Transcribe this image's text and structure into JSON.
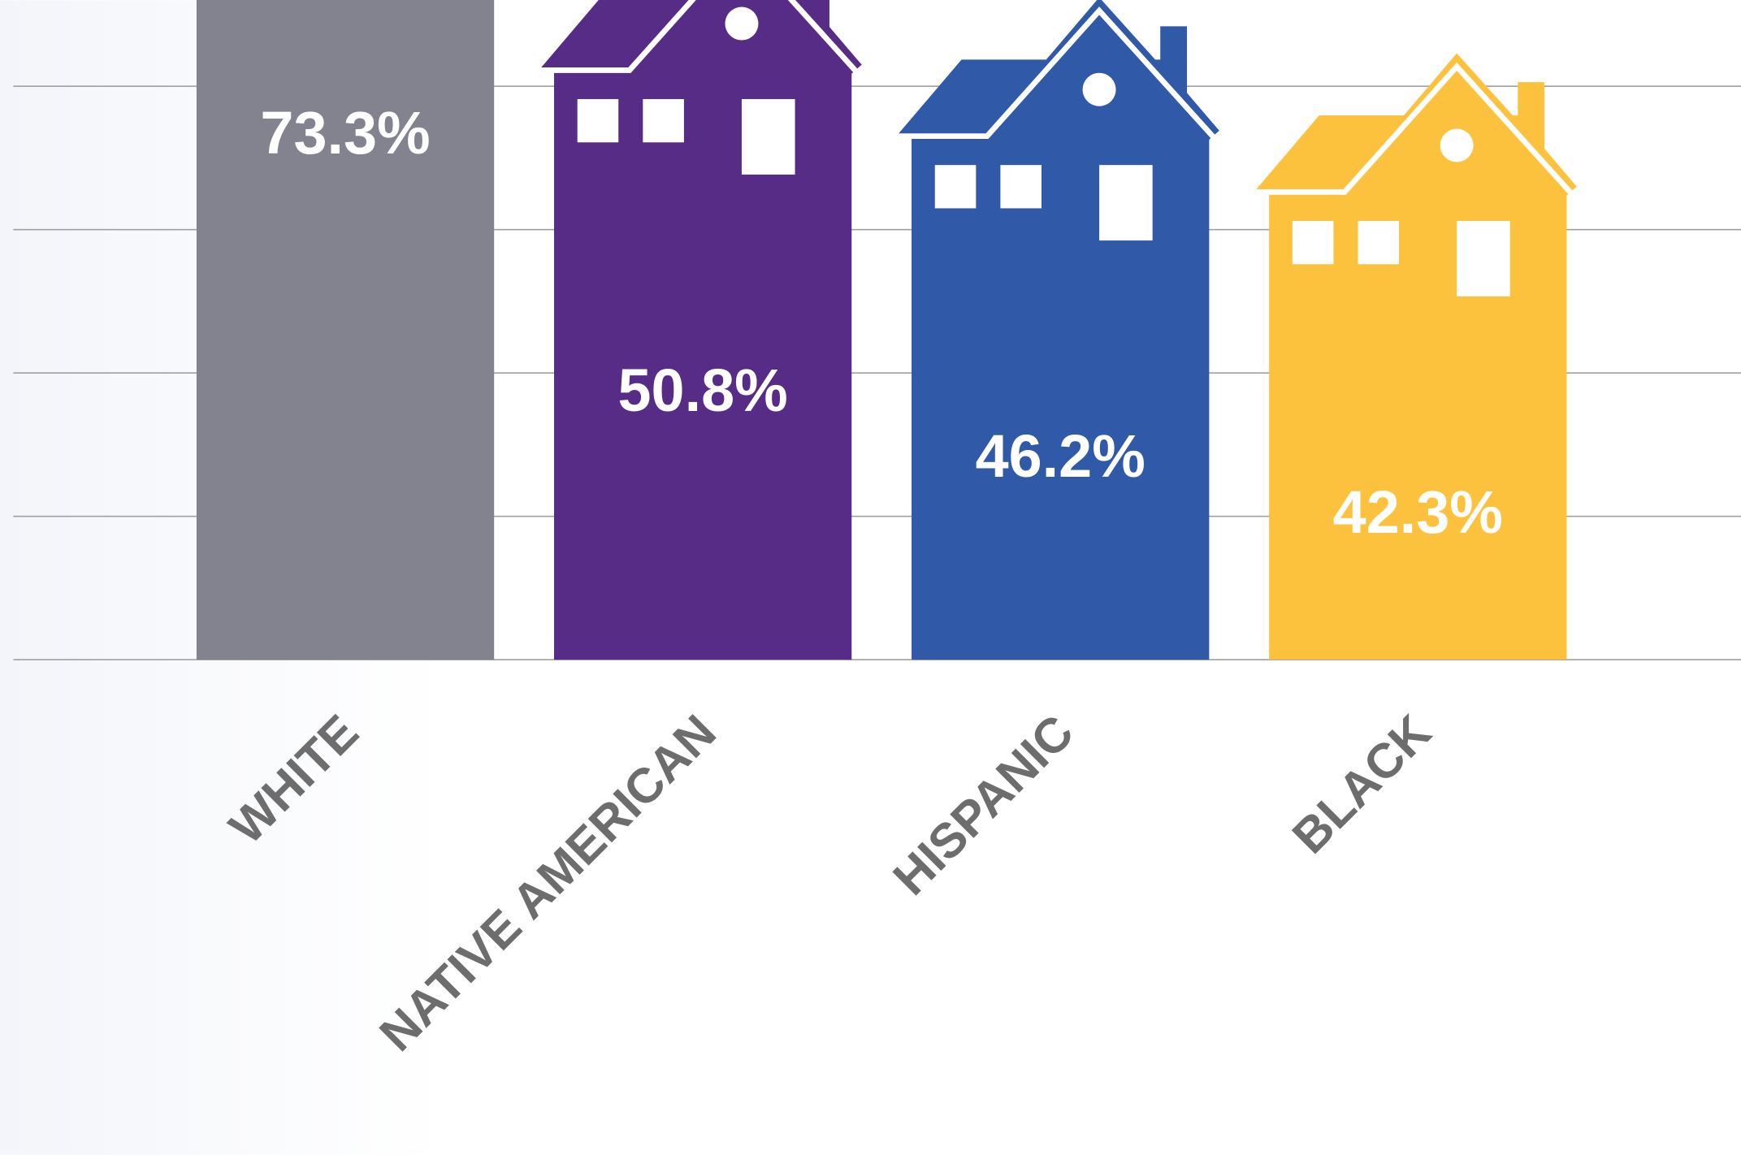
{
  "chart_data": {
    "type": "house-bar",
    "categories": [
      "WHITE",
      "NATIVE AMERICAN",
      "HISPANIC",
      "BLACK"
    ],
    "values": [
      73.3,
      50.8,
      46.2,
      42.3
    ],
    "value_labels": [
      "73.3%",
      "50.8%",
      "46.2%",
      "42.3%"
    ],
    "colors": [
      "#82838f",
      "#562c87",
      "#3059a7",
      "#fcc23d"
    ],
    "ylim": [
      0,
      46
    ],
    "yticks": [
      0,
      10,
      20,
      30,
      40
    ],
    "grid": true
  }
}
